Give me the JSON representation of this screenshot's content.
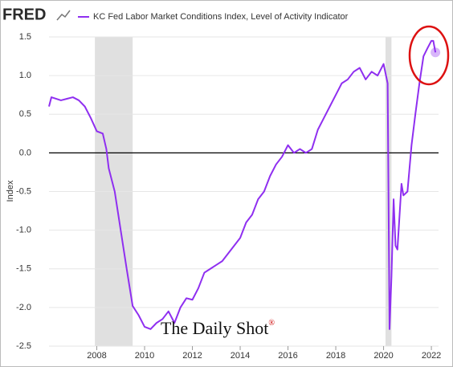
{
  "logo": "FRED",
  "watermark": {
    "text": "The Daily Shot",
    "mark": "®"
  },
  "chart_data": {
    "type": "line",
    "series": [
      {
        "name": "KC Fed Labor Market Conditions Index, Level of Activity Indicator",
        "color": "#8f2ff0",
        "x": [
          2006.0,
          2006.1,
          2006.5,
          2006.75,
          2007.0,
          2007.25,
          2007.5,
          2007.75,
          2008.0,
          2008.25,
          2008.4,
          2008.5,
          2008.75,
          2009.0,
          2009.25,
          2009.5,
          2009.75,
          2010.0,
          2010.25,
          2010.5,
          2010.75,
          2011.0,
          2011.25,
          2011.5,
          2011.75,
          2012.0,
          2012.25,
          2012.5,
          2012.75,
          2013.0,
          2013.25,
          2013.5,
          2013.75,
          2014.0,
          2014.25,
          2014.5,
          2014.75,
          2015.0,
          2015.25,
          2015.5,
          2015.75,
          2016.0,
          2016.25,
          2016.5,
          2016.75,
          2017.0,
          2017.25,
          2017.5,
          2017.75,
          2018.0,
          2018.25,
          2018.5,
          2018.75,
          2019.0,
          2019.25,
          2019.5,
          2019.75,
          2020.0,
          2020.17,
          2020.25,
          2020.33,
          2020.42,
          2020.5,
          2020.58,
          2020.75,
          2020.83,
          2021.0,
          2021.17,
          2021.33,
          2021.5,
          2021.67,
          2021.83,
          2022.0,
          2022.08,
          2022.17
        ],
        "values": [
          0.6,
          0.72,
          0.68,
          0.7,
          0.72,
          0.68,
          0.6,
          0.45,
          0.28,
          0.25,
          0.05,
          -0.2,
          -0.5,
          -1.0,
          -1.5,
          -1.98,
          -2.1,
          -2.25,
          -2.28,
          -2.2,
          -2.15,
          -2.05,
          -2.2,
          -2.0,
          -1.88,
          -1.9,
          -1.75,
          -1.55,
          -1.5,
          -1.45,
          -1.4,
          -1.3,
          -1.2,
          -1.1,
          -0.9,
          -0.8,
          -0.6,
          -0.5,
          -0.3,
          -0.15,
          -0.05,
          0.1,
          0.0,
          0.05,
          0.0,
          0.05,
          0.3,
          0.45,
          0.6,
          0.75,
          0.9,
          0.95,
          1.05,
          1.1,
          0.95,
          1.05,
          1.0,
          1.15,
          0.9,
          -2.28,
          -1.6,
          -0.6,
          -1.2,
          -1.25,
          -0.4,
          -0.55,
          -0.5,
          0.1,
          0.5,
          0.9,
          1.25,
          1.35,
          1.45,
          1.45,
          1.3
        ]
      }
    ],
    "recessions": [
      [
        2007.92,
        2009.5
      ],
      [
        2020.08,
        2020.33
      ]
    ],
    "y_label": "Index",
    "xlim": [
      2006.0,
      2022.3
    ],
    "xticks": [
      2008,
      2010,
      2012,
      2014,
      2016,
      2018,
      2020,
      2022
    ],
    "ylim": [
      -2.5,
      1.5
    ],
    "yticks": [
      {
        "value": 1.5,
        "label": "1.5"
      },
      {
        "value": 1.0,
        "label": "1.0"
      },
      {
        "value": 0.5,
        "label": "0.5"
      },
      {
        "value": 0.0,
        "label": "0.0"
      },
      {
        "value": -0.5,
        "label": "-0.5"
      },
      {
        "value": -1.0,
        "label": "-1.0"
      },
      {
        "value": -1.5,
        "label": "-1.5"
      },
      {
        "value": -2.0,
        "label": "-2.0"
      },
      {
        "value": -2.5,
        "label": "-2.5"
      }
    ],
    "grid": true
  }
}
